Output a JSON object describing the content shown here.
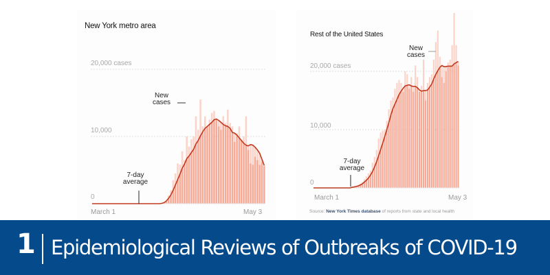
{
  "colors": {
    "bar_fill": "#f7a996",
    "bar_light": "#fbd3c9",
    "avg_line": "#c0391e",
    "gridline": "#dddddd",
    "banner_bg": "#054b8c",
    "banner_text": "#ffffff"
  },
  "banner": {
    "number": "1",
    "title": "Epidemiological Reviews of Outbreaks of COVID-19"
  },
  "source": {
    "prefix": "Source: ",
    "link_text": "New York Times database",
    "suffix": " of reports from state and local health"
  },
  "chart_data": [
    {
      "type": "bar",
      "title": "New York metro area",
      "xlabel": "",
      "ylabel": "cases",
      "x_tick_labels": [
        "March 1",
        "May 3"
      ],
      "y_tick_labels": [
        "0",
        "10,000",
        "20,000 cases"
      ],
      "y_ticks": [
        0,
        10000,
        20000
      ],
      "ylim": [
        0,
        22000
      ],
      "grid": true,
      "annotations": [
        {
          "text": "New cases",
          "target": "daily bars"
        },
        {
          "text": "7-day average",
          "target": "average line"
        }
      ],
      "series": [
        {
          "name": "New cases",
          "type": "bar",
          "values": [
            0,
            0,
            0,
            0,
            0,
            0,
            0,
            0,
            0,
            0,
            0,
            0,
            0,
            0,
            0,
            0,
            0,
            0,
            50,
            100,
            300,
            1200,
            2000,
            3500,
            4500,
            6000,
            5800,
            7800,
            6500,
            10000,
            8500,
            9600,
            10000,
            13000,
            11000,
            15500,
            11500,
            13000,
            11500,
            12500,
            13500,
            13800,
            12500,
            11500,
            11000,
            13000,
            12000,
            14000,
            12000,
            11500,
            9200,
            10500,
            11500,
            9500,
            10000,
            13000,
            8000,
            6000,
            5800,
            7000,
            6500,
            5800,
            6200,
            5600
          ]
        },
        {
          "name": "7-day average",
          "type": "line",
          "values": [
            0,
            0,
            0,
            0,
            0,
            0,
            0,
            0,
            0,
            0,
            0,
            0,
            0,
            0,
            0,
            0,
            0,
            0,
            50,
            150,
            400,
            800,
            1300,
            2000,
            2800,
            3600,
            4400,
            5300,
            5900,
            6700,
            7100,
            7600,
            8100,
            8900,
            9400,
            10100,
            10700,
            11200,
            11500,
            11800,
            12100,
            12500,
            12600,
            12400,
            12100,
            11800,
            11600,
            11500,
            11200,
            10600,
            10500,
            10200,
            9800,
            9400,
            9000,
            8700,
            8600,
            8800,
            8700,
            8400,
            8000,
            7500,
            6600,
            5700
          ]
        }
      ]
    },
    {
      "type": "bar",
      "title": "Rest of the United States",
      "xlabel": "",
      "ylabel": "cases",
      "x_tick_labels": [
        "March 1",
        "May 3"
      ],
      "y_tick_labels": [
        "0",
        "10,000",
        "20,000 cases"
      ],
      "y_ticks": [
        0,
        10000,
        20000
      ],
      "ylim": [
        0,
        28000
      ],
      "grid": true,
      "annotations": [
        {
          "text": "New cases",
          "target": "daily bars"
        },
        {
          "text": "7-day average",
          "target": "average line"
        }
      ],
      "series": [
        {
          "name": "New cases",
          "type": "bar",
          "values": [
            0,
            0,
            0,
            0,
            0,
            0,
            0,
            0,
            0,
            0,
            0,
            200,
            300,
            300,
            400,
            700,
            1000,
            1500,
            2000,
            2500,
            3000,
            4300,
            5300,
            6500,
            8500,
            9500,
            9800,
            10000,
            11500,
            13500,
            15000,
            15500,
            17000,
            18000,
            18500,
            18000,
            16500,
            20000,
            19500,
            17000,
            19000,
            16500,
            21000,
            19000,
            16500,
            17500,
            22000,
            15000,
            18000,
            19000,
            19500,
            22000,
            25000,
            27000,
            22500,
            19000,
            18000,
            20000,
            21500,
            22000,
            24500,
            30000,
            24500,
            21000
          ]
        },
        {
          "name": "7-day average",
          "type": "line",
          "values": [
            0,
            0,
            0,
            0,
            0,
            0,
            0,
            0,
            0,
            0,
            0,
            100,
            150,
            250,
            350,
            500,
            700,
            1000,
            1300,
            1700,
            2200,
            2800,
            3600,
            4500,
            5500,
            6600,
            7700,
            8800,
            10000,
            11200,
            12500,
            13600,
            14400,
            15200,
            16000,
            16600,
            17100,
            17500,
            17600,
            17700,
            17500,
            17400,
            17400,
            17200,
            16800,
            16600,
            16700,
            16700,
            16800,
            17300,
            17800,
            18700,
            19500,
            20100,
            20700,
            21000,
            20800,
            20800,
            20900,
            20900,
            20900,
            21300,
            21500,
            21700
          ]
        }
      ]
    }
  ]
}
